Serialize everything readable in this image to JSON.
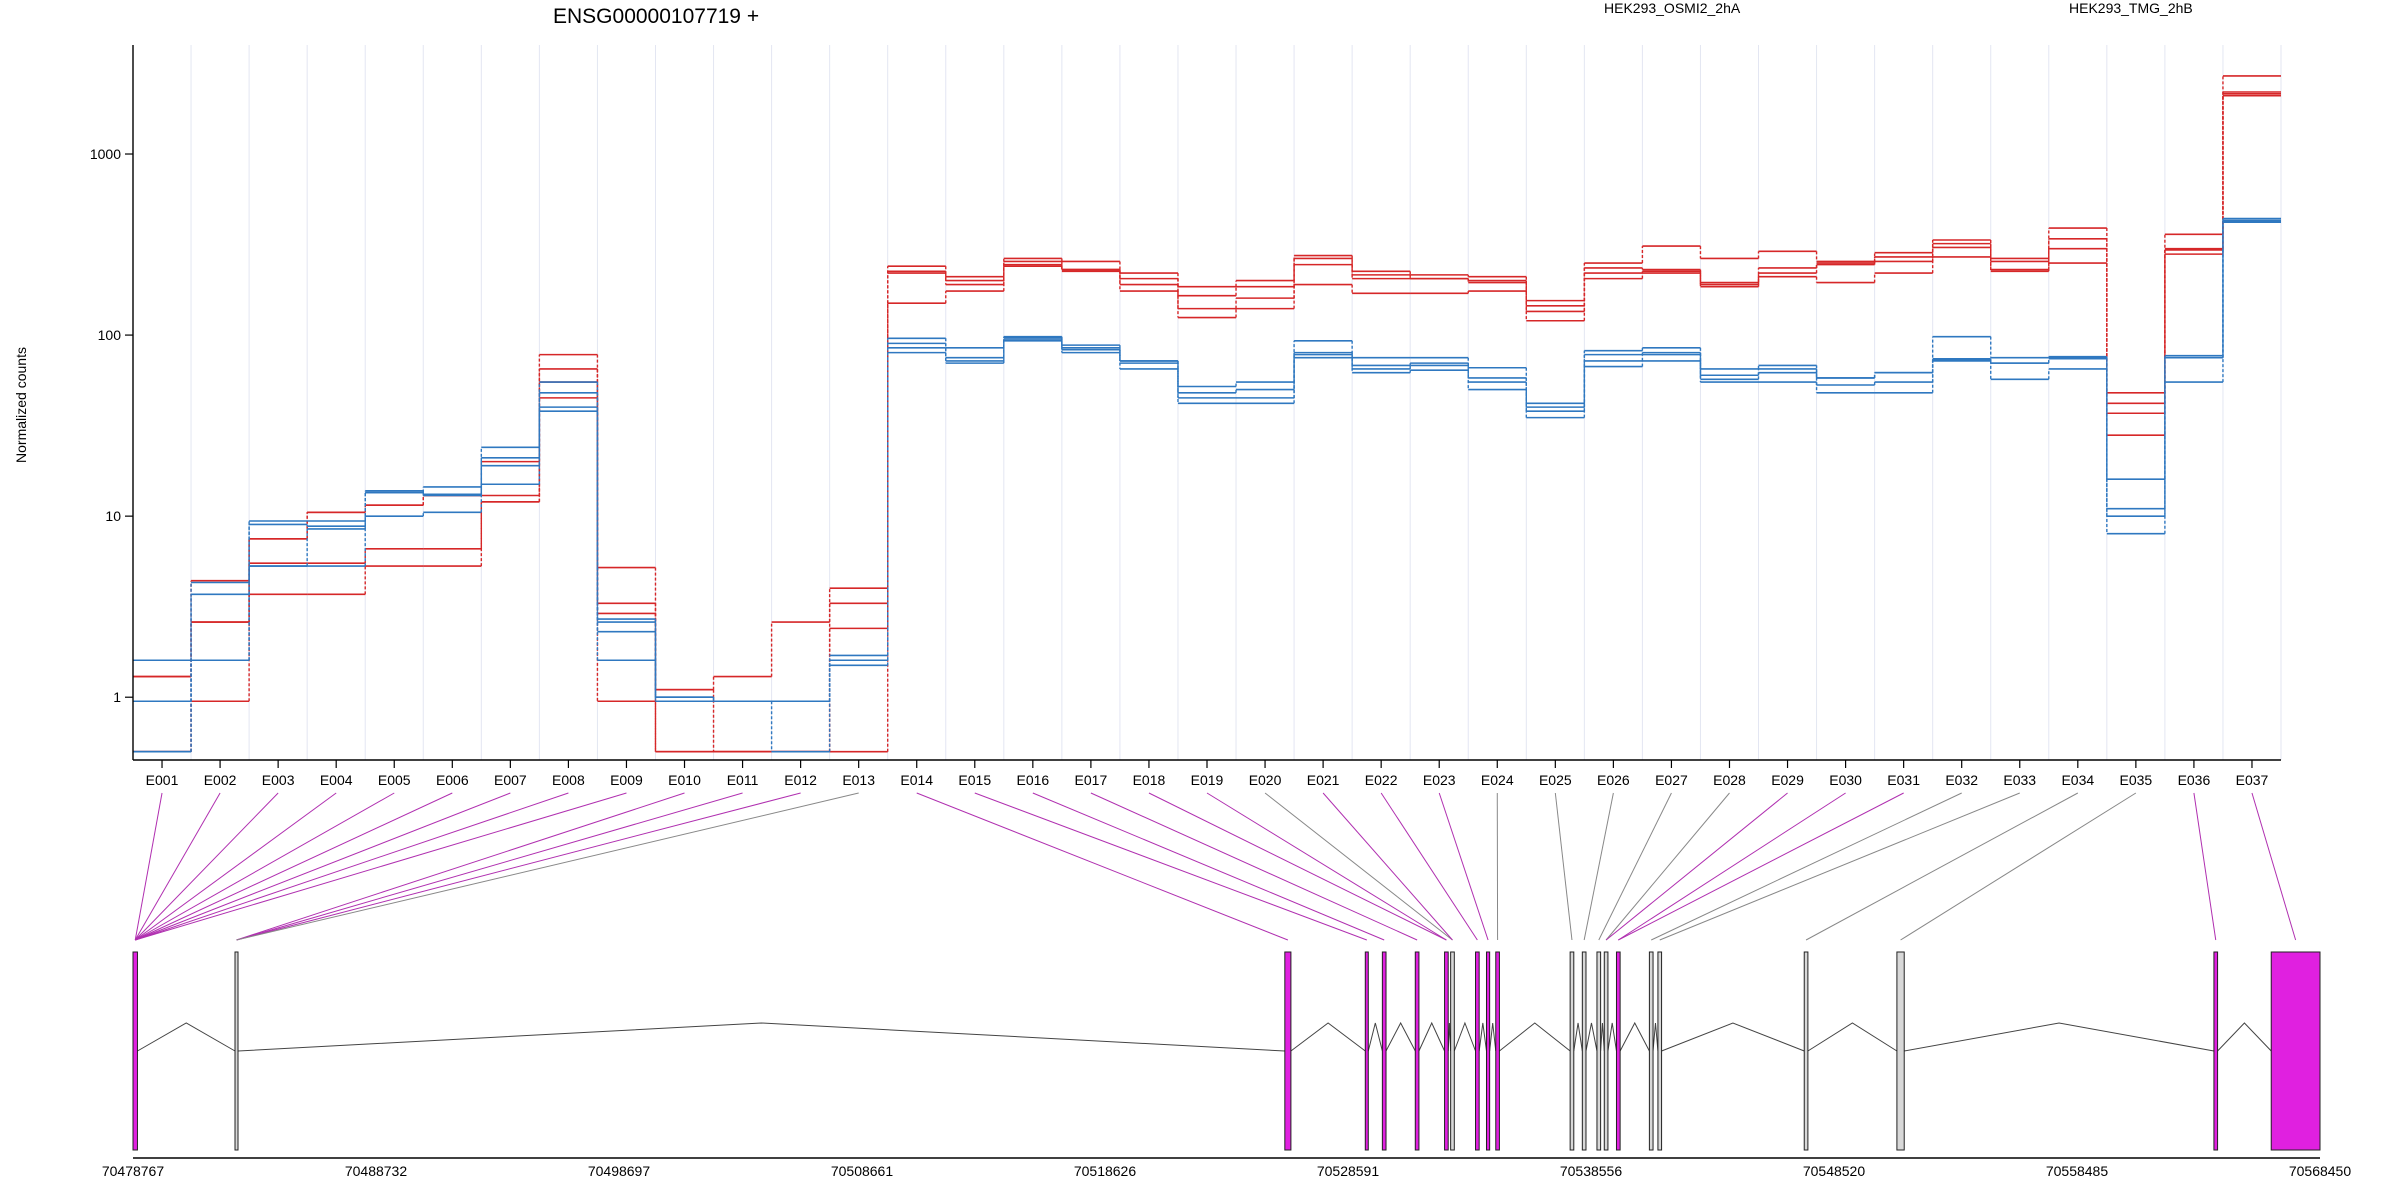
{
  "chart_data": {
    "type": "line",
    "title": "ENSG00000107719 +",
    "ylabel": "Normalized counts",
    "xlabel": "",
    "y_scale": "log",
    "ylim": [
      0.45,
      4000
    ],
    "y_ticks": [
      1,
      10,
      100,
      1000
    ],
    "y_tick_labels": [
      "1",
      "10",
      "100",
      "1000"
    ],
    "grid": "vertical lines at each exon boundary",
    "legend": [
      {
        "name": "HEK293_OSMI2_2hA",
        "color": "#d62728",
        "position": "top-center"
      },
      {
        "name": "HEK293_TMG_2hB",
        "color": "#2f78c0",
        "position": "top-right"
      }
    ],
    "categories": [
      "E001",
      "E002",
      "E003",
      "E004",
      "E005",
      "E006",
      "E007",
      "E008",
      "E009",
      "E010",
      "E011",
      "E012",
      "E013",
      "E014",
      "E015",
      "E016",
      "E017",
      "E018",
      "E019",
      "E020",
      "E021",
      "E022",
      "E023",
      "E024",
      "E025",
      "E026",
      "E027",
      "E028",
      "E029",
      "E030",
      "E031",
      "E032",
      "E033",
      "E034",
      "E035",
      "E036",
      "E037"
    ],
    "series": [
      {
        "group": "HEK293_OSMI2_2hA",
        "color": "#d62728",
        "values": [
          1.3,
          2.6,
          7.5,
          10.5,
          11.5,
          13,
          20,
          78,
          5.2,
          1.1,
          1.3,
          2.6,
          4.0,
          240,
          210,
          265,
          255,
          220,
          185,
          200,
          275,
          225,
          215,
          210,
          155,
          250,
          310,
          265,
          290,
          255,
          285,
          335,
          265,
          390,
          48,
          360,
          2700
        ]
      },
      {
        "group": "HEK293_OSMI2_2hA",
        "color": "#d62728",
        "values": [
          1.3,
          2.6,
          7.5,
          10.5,
          11.5,
          13,
          13,
          65,
          3.3,
          1.1,
          0.5,
          0.5,
          3.3,
          220,
          190,
          245,
          230,
          190,
          140,
          160,
          245,
          205,
          205,
          195,
          135,
          220,
          225,
          190,
          235,
          245,
          255,
          305,
          255,
          300,
          37,
          295,
          2200
        ]
      },
      {
        "group": "HEK293_OSMI2_2hA",
        "color": "#d62728",
        "values": [
          0.5,
          0.95,
          3.7,
          3.7,
          5.3,
          5.3,
          12,
          45,
          0.95,
          0.5,
          0.5,
          0.5,
          0.5,
          150,
          175,
          240,
          225,
          175,
          125,
          140,
          190,
          170,
          170,
          175,
          120,
          205,
          220,
          185,
          210,
          195,
          220,
          270,
          225,
          250,
          28,
          280,
          2100
        ]
      },
      {
        "group": "HEK293_OSMI2_2hA",
        "color": "#d62728",
        "values": [
          0.5,
          4.4,
          5.5,
          5.5,
          6.6,
          6.6,
          12,
          55,
          2.9,
          0.5,
          0.5,
          0.5,
          2.4,
          225,
          200,
          255,
          230,
          205,
          165,
          185,
          265,
          215,
          205,
          200,
          145,
          235,
          230,
          195,
          220,
          250,
          270,
          320,
          230,
          340,
          42,
          300,
          2150
        ]
      },
      {
        "group": "HEK293_TMG_2hB",
        "color": "#2f78c0",
        "values": [
          1.6,
          3.7,
          9.4,
          9.4,
          13.5,
          14.5,
          24,
          55,
          2.7,
          1.0,
          0.95,
          0.95,
          1.6,
          96,
          85,
          98,
          88,
          72,
          52,
          55,
          93,
          75,
          75,
          66,
          42,
          82,
          85,
          65,
          68,
          58,
          62,
          98,
          75,
          76,
          16,
          77,
          440
        ]
      },
      {
        "group": "HEK293_TMG_2hB",
        "color": "#2f78c0",
        "values": [
          0.95,
          1.6,
          5.3,
          8.5,
          10,
          10.5,
          15,
          40,
          1.6,
          0.95,
          0.95,
          0.95,
          1.6,
          80,
          70,
          93,
          80,
          65,
          42,
          42,
          75,
          62,
          64,
          50,
          35,
          67,
          72,
          55,
          55,
          48,
          48,
          72,
          57,
          65,
          8,
          55,
          420
        ]
      },
      {
        "group": "HEK293_TMG_2hB",
        "color": "#2f78c0",
        "values": [
          0.5,
          4.3,
          5.3,
          5.3,
          13.5,
          13,
          19,
          48,
          2.3,
          0.95,
          0.95,
          0.5,
          1.5,
          90,
          72,
          95,
          85,
          70,
          48,
          50,
          80,
          68,
          70,
          58,
          38,
          72,
          78,
          57,
          62,
          53,
          55,
          74,
          70,
          75,
          10,
          75,
          430
        ]
      },
      {
        "group": "HEK293_TMG_2hB",
        "color": "#2f78c0",
        "values": [
          0.5,
          1.6,
          9.0,
          8.8,
          13.8,
          13.2,
          21,
          38,
          2.6,
          1.0,
          0.95,
          0.95,
          1.7,
          85,
          75,
          97,
          83,
          72,
          45,
          45,
          78,
          65,
          68,
          55,
          40,
          78,
          80,
          60,
          65,
          58,
          62,
          73,
          70,
          74,
          11,
          75,
          425
        ]
      }
    ],
    "gene_model": {
      "coordinate_labels": [
        "70478767",
        "70488732",
        "70498697",
        "70508661",
        "70518626",
        "70528591",
        "70538556",
        "70548520",
        "70558485",
        "70568450"
      ],
      "coordinate_range": [
        70478767,
        70568450
      ],
      "tested_color": "#e020e0",
      "untested_color": "#d8d8d8",
      "exons": [
        {
          "start": 70478767,
          "end": 70478950,
          "tested": true
        },
        {
          "start": 70482950,
          "end": 70483050,
          "tested": false
        },
        {
          "start": 70526000,
          "end": 70526250,
          "tested": true
        },
        {
          "start": 70529300,
          "end": 70529420,
          "tested": true
        },
        {
          "start": 70530000,
          "end": 70530150,
          "tested": true
        },
        {
          "start": 70531350,
          "end": 70531500,
          "tested": true
        },
        {
          "start": 70532550,
          "end": 70532700,
          "tested": true
        },
        {
          "start": 70532800,
          "end": 70532950,
          "tested": false
        },
        {
          "start": 70533820,
          "end": 70533970,
          "tested": true
        },
        {
          "start": 70534270,
          "end": 70534400,
          "tested": true
        },
        {
          "start": 70534650,
          "end": 70534800,
          "tested": true
        },
        {
          "start": 70537700,
          "end": 70537850,
          "tested": false
        },
        {
          "start": 70538200,
          "end": 70538350,
          "tested": false
        },
        {
          "start": 70538800,
          "end": 70538950,
          "tested": false
        },
        {
          "start": 70539100,
          "end": 70539250,
          "tested": false
        },
        {
          "start": 70539600,
          "end": 70539750,
          "tested": true
        },
        {
          "start": 70540950,
          "end": 70541100,
          "tested": false
        },
        {
          "start": 70541300,
          "end": 70541450,
          "tested": false
        },
        {
          "start": 70547300,
          "end": 70547450,
          "tested": false
        },
        {
          "start": 70551100,
          "end": 70551400,
          "tested": false
        },
        {
          "start": 70564100,
          "end": 70564250,
          "tested": true
        },
        {
          "start": 70566450,
          "end": 70568450,
          "tested": true
        }
      ],
      "connectors": [
        {
          "exon": "E001",
          "model_exon": 0,
          "tested": true
        },
        {
          "exon": "E002",
          "model_exon": 0,
          "tested": true
        },
        {
          "exon": "E003",
          "model_exon": 0,
          "tested": true
        },
        {
          "exon": "E004",
          "model_exon": 0,
          "tested": true
        },
        {
          "exon": "E005",
          "model_exon": 0,
          "tested": true
        },
        {
          "exon": "E006",
          "model_exon": 0,
          "tested": true
        },
        {
          "exon": "E007",
          "model_exon": 0,
          "tested": true
        },
        {
          "exon": "E008",
          "model_exon": 0,
          "tested": true
        },
        {
          "exon": "E009",
          "model_exon": 0,
          "tested": true
        },
        {
          "exon": "E010",
          "model_exon": 1,
          "tested": true
        },
        {
          "exon": "E011",
          "model_exon": 1,
          "tested": true
        },
        {
          "exon": "E012",
          "model_exon": 1,
          "tested": true
        },
        {
          "exon": "E013",
          "model_exon": 1,
          "tested": false
        },
        {
          "exon": "E014",
          "model_exon": 2,
          "tested": true
        },
        {
          "exon": "E015",
          "model_exon": 3,
          "tested": true
        },
        {
          "exon": "E016",
          "model_exon": 4,
          "tested": true
        },
        {
          "exon": "E017",
          "model_exon": 5,
          "tested": true
        },
        {
          "exon": "E018",
          "model_exon": 6,
          "tested": true
        },
        {
          "exon": "E019",
          "model_exon": 6,
          "tested": true
        },
        {
          "exon": "E020",
          "model_exon": 7,
          "tested": false
        },
        {
          "exon": "E021",
          "model_exon": 7,
          "tested": true
        },
        {
          "exon": "E022",
          "model_exon": 8,
          "tested": true
        },
        {
          "exon": "E023",
          "model_exon": 9,
          "tested": true
        },
        {
          "exon": "E024",
          "model_exon": 10,
          "tested": false
        },
        {
          "exon": "E025",
          "model_exon": 11,
          "tested": false
        },
        {
          "exon": "E026",
          "model_exon": 12,
          "tested": false
        },
        {
          "exon": "E027",
          "model_exon": 13,
          "tested": false
        },
        {
          "exon": "E028",
          "model_exon": 14,
          "tested": false
        },
        {
          "exon": "E029",
          "model_exon": 14,
          "tested": true
        },
        {
          "exon": "E030",
          "model_exon": 15,
          "tested": true
        },
        {
          "exon": "E031",
          "model_exon": 15,
          "tested": true
        },
        {
          "exon": "E032",
          "model_exon": 16,
          "tested": false
        },
        {
          "exon": "E033",
          "model_exon": 17,
          "tested": false
        },
        {
          "exon": "E034",
          "model_exon": 18,
          "tested": false
        },
        {
          "exon": "E035",
          "model_exon": 19,
          "tested": false
        },
        {
          "exon": "E036",
          "model_exon": 20,
          "tested": true
        },
        {
          "exon": "E037",
          "model_exon": 21,
          "tested": true
        }
      ]
    }
  }
}
